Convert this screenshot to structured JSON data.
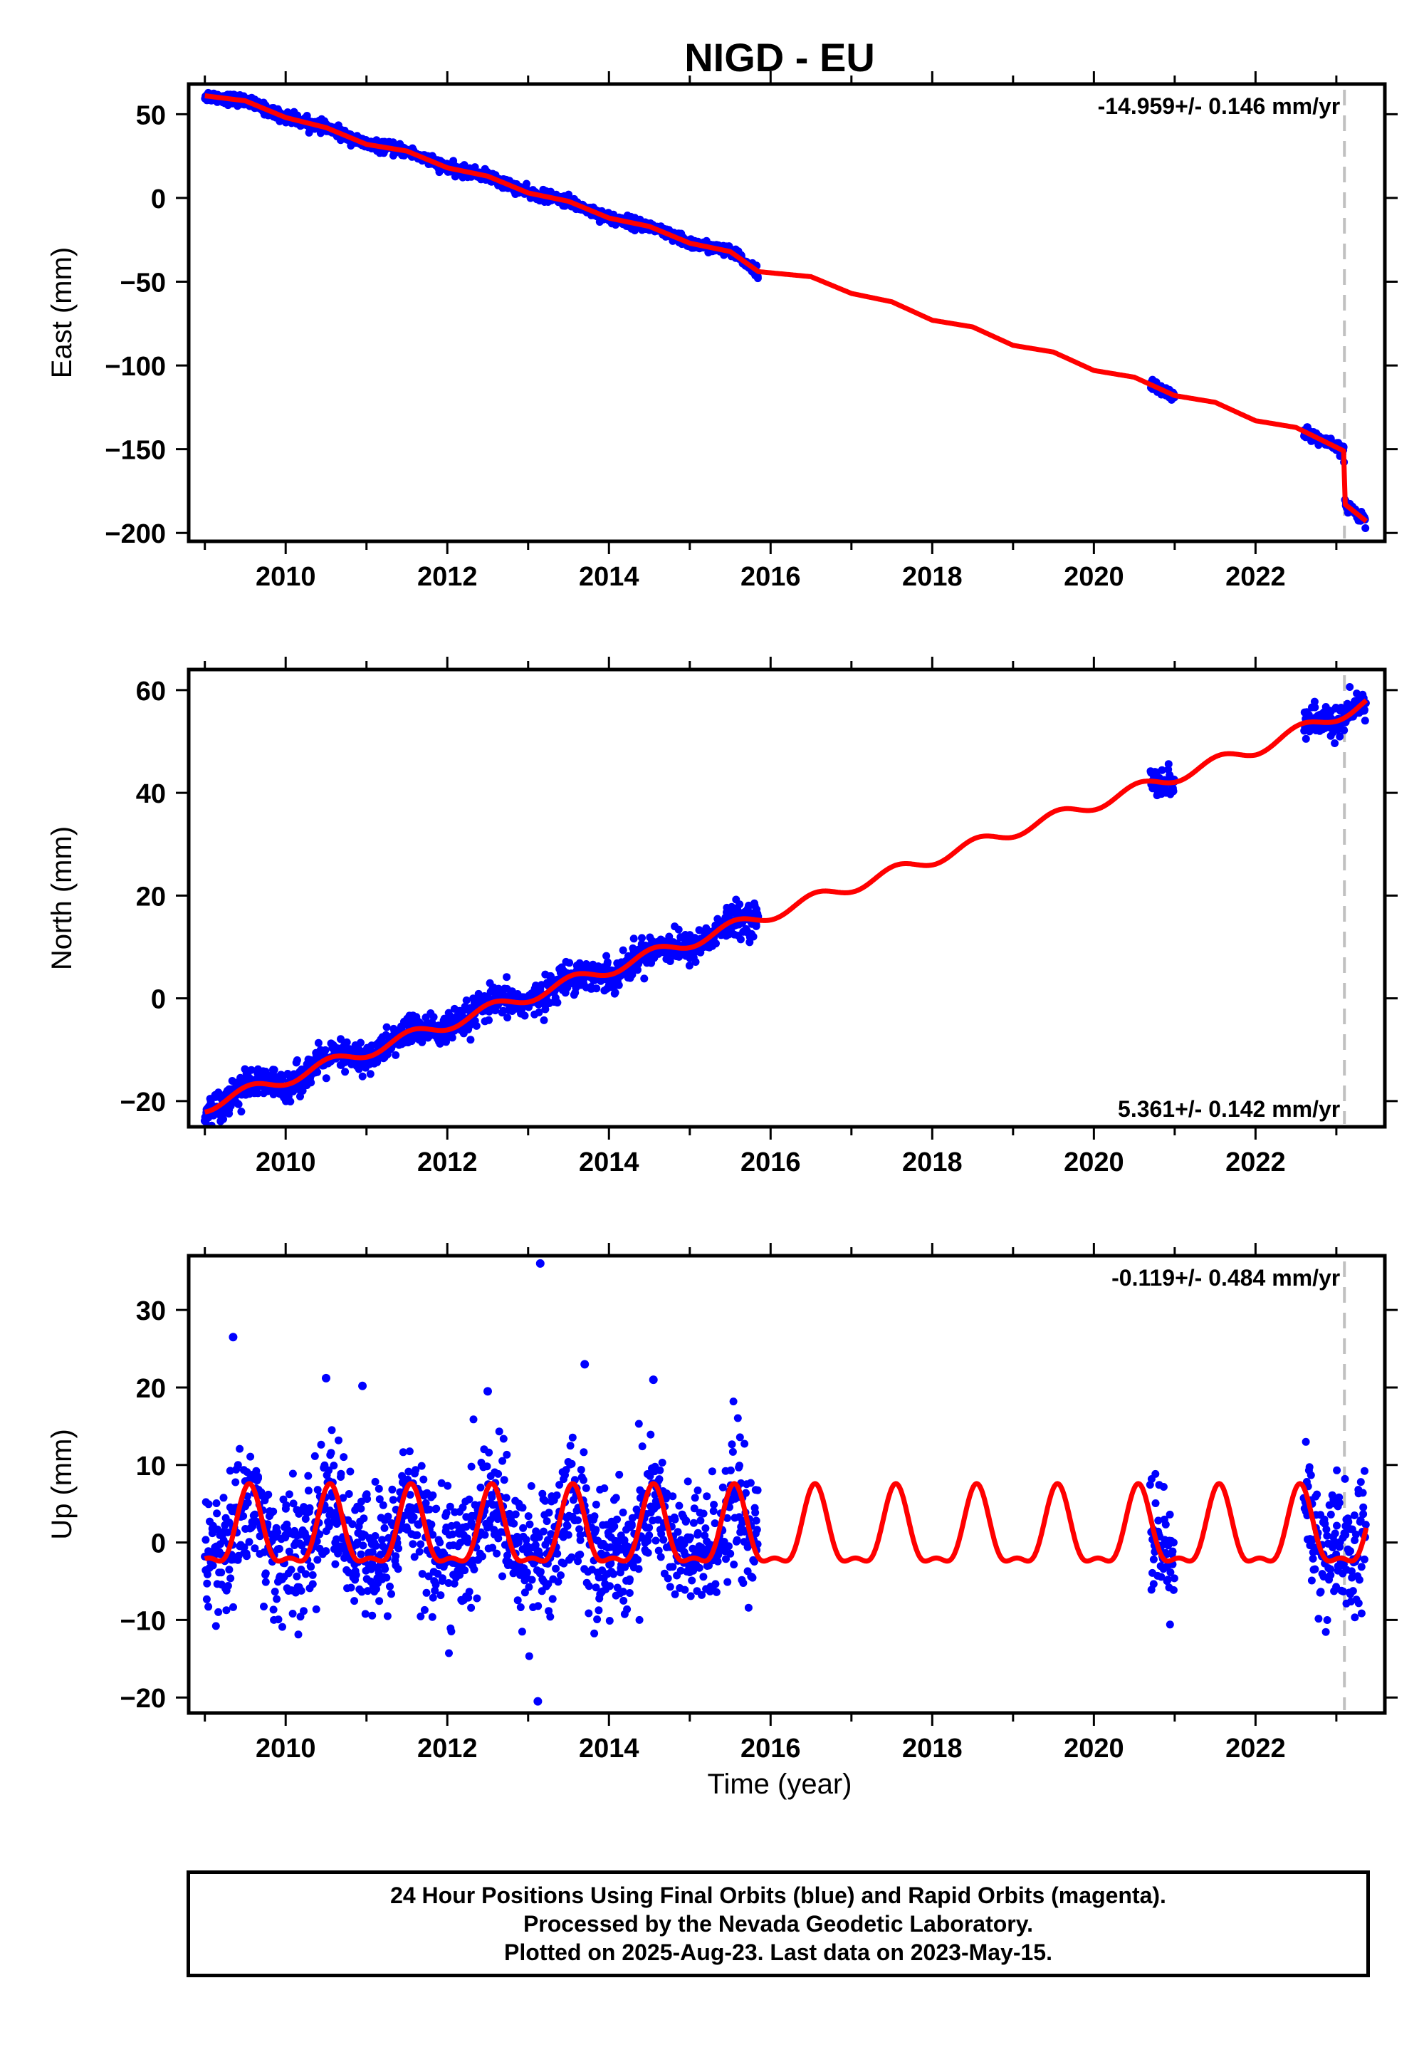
{
  "title": "NIGD - EU",
  "x_axis": {
    "label": "Time (year)",
    "range": [
      2008.8,
      2023.6
    ],
    "ticks": [
      "2010",
      "2012",
      "2014",
      "2016",
      "2018",
      "2020",
      "2022"
    ]
  },
  "colors": {
    "final_orbits": "#0000ff",
    "model": "#ff0000",
    "event_line": "#c0c0c0"
  },
  "event_line_year": 2023.1,
  "chart_data": [
    {
      "type": "scatter",
      "name": "east",
      "ylabel": "East (mm)",
      "ylim": [
        -205,
        68
      ],
      "yticks": [
        50,
        0,
        -50,
        -100,
        -150,
        -200
      ],
      "rate_label": "-14.959+/- 0.146 mm/yr",
      "rate_position": "top-right",
      "data_segments": [
        [
          2009.0,
          2015.85
        ],
        [
          2020.7,
          2021.0
        ],
        [
          2022.6,
          2023.37
        ]
      ],
      "scatter_spread": 1.6,
      "model_series": [
        [
          2009.0,
          61
        ],
        [
          2009.5,
          58
        ],
        [
          2010.0,
          48
        ],
        [
          2010.5,
          42
        ],
        [
          2011.0,
          32
        ],
        [
          2011.5,
          28
        ],
        [
          2012.0,
          18
        ],
        [
          2012.5,
          13
        ],
        [
          2013.0,
          3
        ],
        [
          2013.5,
          -2
        ],
        [
          2014.0,
          -12
        ],
        [
          2014.5,
          -17
        ],
        [
          2015.0,
          -27
        ],
        [
          2015.5,
          -32
        ],
        [
          2015.85,
          -44
        ],
        [
          2016.5,
          -47
        ],
        [
          2017.0,
          -57
        ],
        [
          2017.5,
          -62
        ],
        [
          2018.0,
          -73
        ],
        [
          2018.5,
          -77
        ],
        [
          2019.0,
          -88
        ],
        [
          2019.5,
          -92
        ],
        [
          2020.0,
          -103
        ],
        [
          2020.5,
          -107
        ],
        [
          2021.0,
          -118
        ],
        [
          2021.5,
          -122
        ],
        [
          2022.0,
          -133
        ],
        [
          2022.5,
          -137
        ],
        [
          2023.09,
          -151
        ],
        [
          2023.11,
          -183
        ],
        [
          2023.37,
          -193
        ]
      ]
    },
    {
      "type": "scatter",
      "name": "north",
      "ylabel": "North (mm)",
      "ylim": [
        -25,
        64
      ],
      "yticks": [
        60,
        40,
        20,
        0,
        -20
      ],
      "rate_label": "5.361+/- 0.142 mm/yr",
      "rate_position": "bottom-right",
      "data_segments": [
        [
          2009.0,
          2015.85
        ],
        [
          2020.7,
          2021.0
        ],
        [
          2022.6,
          2023.37
        ]
      ],
      "scatter_spread": 1.5,
      "model_series": [
        [
          2009.0,
          -21
        ],
        [
          2010.0,
          -15.7
        ],
        [
          2011.0,
          -10.3
        ],
        [
          2012.0,
          -5
        ],
        [
          2013.0,
          0.4
        ],
        [
          2014.0,
          5.7
        ],
        [
          2015.0,
          11
        ],
        [
          2016.0,
          16.4
        ],
        [
          2017.0,
          21.8
        ],
        [
          2018.0,
          27.1
        ],
        [
          2019.0,
          32.5
        ],
        [
          2020.0,
          37.8
        ],
        [
          2021.0,
          43.2
        ],
        [
          2022.0,
          48.5
        ],
        [
          2023.37,
          57.5
        ]
      ],
      "model_seasonal_amplitude": 1.2
    },
    {
      "type": "scatter",
      "name": "up",
      "ylabel": "Up (mm)",
      "ylim": [
        -22,
        37
      ],
      "yticks": [
        30,
        20,
        10,
        0,
        -10,
        -20
      ],
      "rate_label": "-0.119+/- 0.484 mm/yr",
      "rate_position": "top-right",
      "data_segments": [
        [
          2009.0,
          2015.85
        ],
        [
          2020.7,
          2021.0
        ],
        [
          2022.6,
          2023.37
        ]
      ],
      "scatter_spread": 4.2,
      "model_annual_amplitude": 4.8,
      "model_semiannual_amplitude": 1.8,
      "model_peak_year_fraction": 0.55,
      "outliers": [
        [
          2009.35,
          26.5
        ],
        [
          2013.15,
          36
        ],
        [
          2013.12,
          -20.5
        ],
        [
          2013.7,
          23
        ],
        [
          2010.5,
          21.2
        ],
        [
          2010.95,
          20.2
        ],
        [
          2014.55,
          21
        ],
        [
          2012.5,
          19.5
        ]
      ]
    }
  ],
  "footer": {
    "line1": "24 Hour Positions Using Final Orbits (blue) and Rapid Orbits (magenta).",
    "line2": "Processed by the Nevada Geodetic Laboratory.",
    "line3": "Plotted on 2025-Aug-23. Last data on 2023-May-15."
  }
}
